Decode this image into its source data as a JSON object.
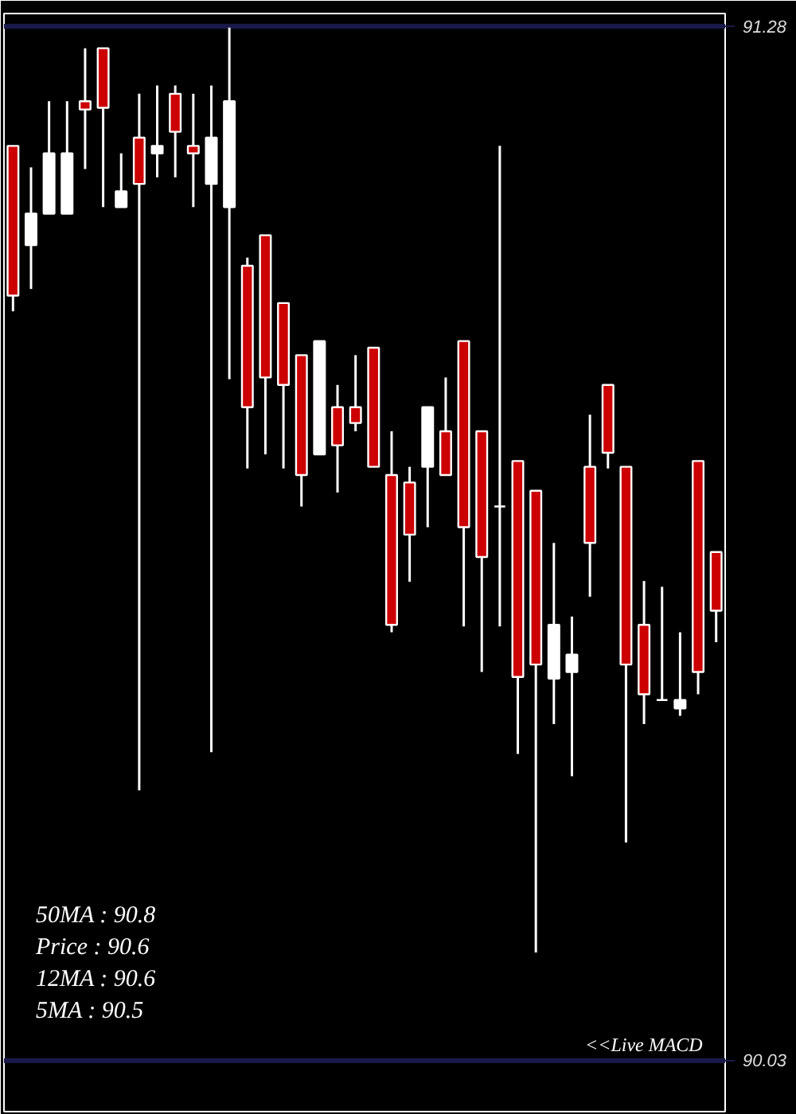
{
  "chart_data": {
    "type": "candlestick",
    "categories": [
      null,
      null,
      null,
      null,
      null,
      null,
      null,
      null,
      null,
      null,
      null,
      null,
      null,
      null,
      null,
      null,
      null,
      null,
      null,
      null,
      null,
      null,
      null,
      null,
      null,
      null,
      null,
      null,
      null,
      null,
      null,
      null,
      null,
      null,
      null,
      null,
      null,
      null,
      null,
      null
    ],
    "ohlc": [
      [
        91.135,
        91.135,
        90.935,
        90.954
      ],
      [
        91.015,
        91.109,
        90.962,
        91.053
      ],
      [
        91.053,
        91.189,
        91.053,
        91.126
      ],
      [
        91.053,
        91.189,
        91.053,
        91.126
      ],
      [
        91.189,
        91.253,
        91.107,
        91.179
      ],
      [
        91.253,
        91.253,
        91.061,
        91.181
      ],
      [
        91.061,
        91.126,
        91.061,
        91.08
      ],
      [
        91.145,
        91.198,
        90.356,
        91.089
      ],
      [
        91.126,
        91.208,
        91.097,
        91.135
      ],
      [
        91.198,
        91.208,
        91.097,
        91.152
      ],
      [
        91.135,
        91.198,
        91.061,
        91.126
      ],
      [
        91.089,
        91.208,
        90.402,
        91.145
      ],
      [
        91.061,
        91.278,
        90.853,
        91.189
      ],
      [
        90.99,
        91.0,
        90.745,
        90.819
      ],
      [
        91.027,
        91.027,
        90.762,
        90.855
      ],
      [
        90.945,
        90.945,
        90.745,
        90.846
      ],
      [
        90.882,
        90.882,
        90.699,
        90.737
      ],
      [
        90.762,
        90.899,
        90.762,
        90.899
      ],
      [
        90.819,
        90.846,
        90.716,
        90.773
      ],
      [
        90.819,
        90.882,
        90.79,
        90.8
      ],
      [
        90.891,
        90.891,
        90.747,
        90.747
      ],
      [
        90.737,
        90.79,
        90.547,
        90.556
      ],
      [
        90.728,
        90.747,
        90.608,
        90.665
      ],
      [
        90.747,
        90.819,
        90.674,
        90.819
      ],
      [
        90.79,
        90.855,
        90.737,
        90.737
      ],
      [
        90.899,
        90.899,
        90.554,
        90.674
      ],
      [
        90.79,
        90.79,
        90.499,
        90.638
      ],
      [
        90.699,
        91.135,
        90.554,
        90.699
      ],
      [
        90.754,
        90.754,
        90.4,
        90.493
      ],
      [
        90.718,
        90.718,
        90.16,
        90.508
      ],
      [
        90.491,
        90.655,
        90.436,
        90.556
      ],
      [
        90.499,
        90.566,
        90.373,
        90.52
      ],
      [
        90.747,
        90.81,
        90.59,
        90.655
      ],
      [
        90.846,
        90.846,
        90.745,
        90.764
      ],
      [
        90.747,
        90.747,
        90.293,
        90.508
      ],
      [
        90.556,
        90.609,
        90.436,
        90.472
      ],
      [
        90.465,
        90.602,
        90.465,
        90.465
      ],
      [
        90.455,
        90.547,
        90.446,
        90.465
      ],
      [
        90.754,
        90.754,
        90.472,
        90.499
      ],
      [
        90.644,
        90.644,
        90.535,
        90.573
      ]
    ],
    "colors": [
      "#cc0000",
      "#ffffff",
      "#ffffff",
      "#ffffff",
      "#cc0000",
      "#cc0000",
      "#ffffff",
      "#cc0000",
      "#ffffff",
      "#cc0000",
      "#cc0000",
      "#ffffff",
      "#ffffff",
      "#cc0000",
      "#cc0000",
      "#cc0000",
      "#cc0000",
      "#ffffff",
      "#cc0000",
      "#cc0000",
      "#cc0000",
      "#cc0000",
      "#cc0000",
      "#ffffff",
      "#cc0000",
      "#cc0000",
      "#cc0000",
      "#ffffff",
      "#cc0000",
      "#cc0000",
      "#ffffff",
      "#ffffff",
      "#cc0000",
      "#cc0000",
      "#cc0000",
      "#cc0000",
      "#ffffff",
      "#ffffff",
      "#cc0000",
      "#cc0000"
    ],
    "ylim": [
      90.03,
      91.28
    ],
    "yticks": [
      90.03,
      91.28
    ],
    "grid": "y",
    "tick_labels": "y",
    "annotations": [
      "50MA : 90.8",
      "Price   : 90.6",
      "12MA : 90.6",
      "5MA : 90.5",
      "<<Live MACD"
    ]
  }
}
